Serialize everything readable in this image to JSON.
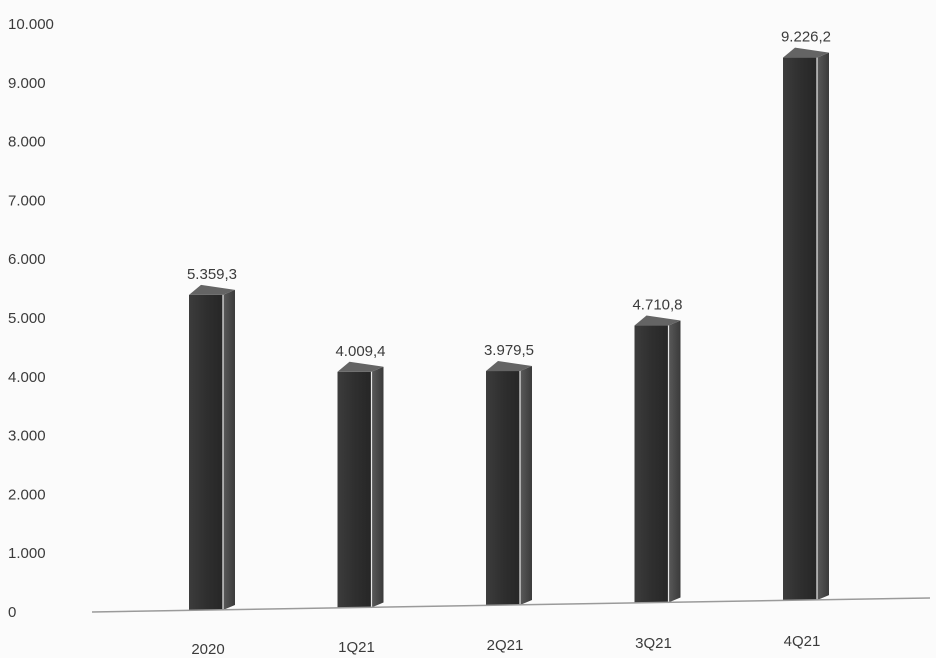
{
  "chart_data": {
    "type": "bar",
    "title": "",
    "xlabel": "",
    "ylabel": "",
    "categories": [
      "2020",
      "1Q21",
      "2Q21",
      "3Q21",
      "4Q21"
    ],
    "values": [
      5359.3,
      4009.4,
      3979.5,
      4710.8,
      9226.2
    ],
    "data_labels": [
      "5.359,3",
      "4.009,4",
      "3.979,5",
      "4.710,8",
      "9.226,2"
    ],
    "ylim": [
      0,
      10000
    ],
    "yticks": [
      0,
      1000,
      2000,
      3000,
      4000,
      5000,
      6000,
      7000,
      8000,
      9000,
      10000
    ],
    "ytick_labels": [
      "0",
      "1.000",
      "2.000",
      "3.000",
      "4.000",
      "5.000",
      "6.000",
      "7.000",
      "8.000",
      "9.000",
      "10.000"
    ],
    "grid": false,
    "legend": "none",
    "bar_style": "3d-column",
    "colors": {
      "bar_front": "#2f2f2f",
      "bar_side": "#4a4a4a",
      "bar_top": "#646464",
      "axis_line": "#9a9a9a",
      "text": "#3b3b3b",
      "background": "#fbfbfb"
    }
  }
}
